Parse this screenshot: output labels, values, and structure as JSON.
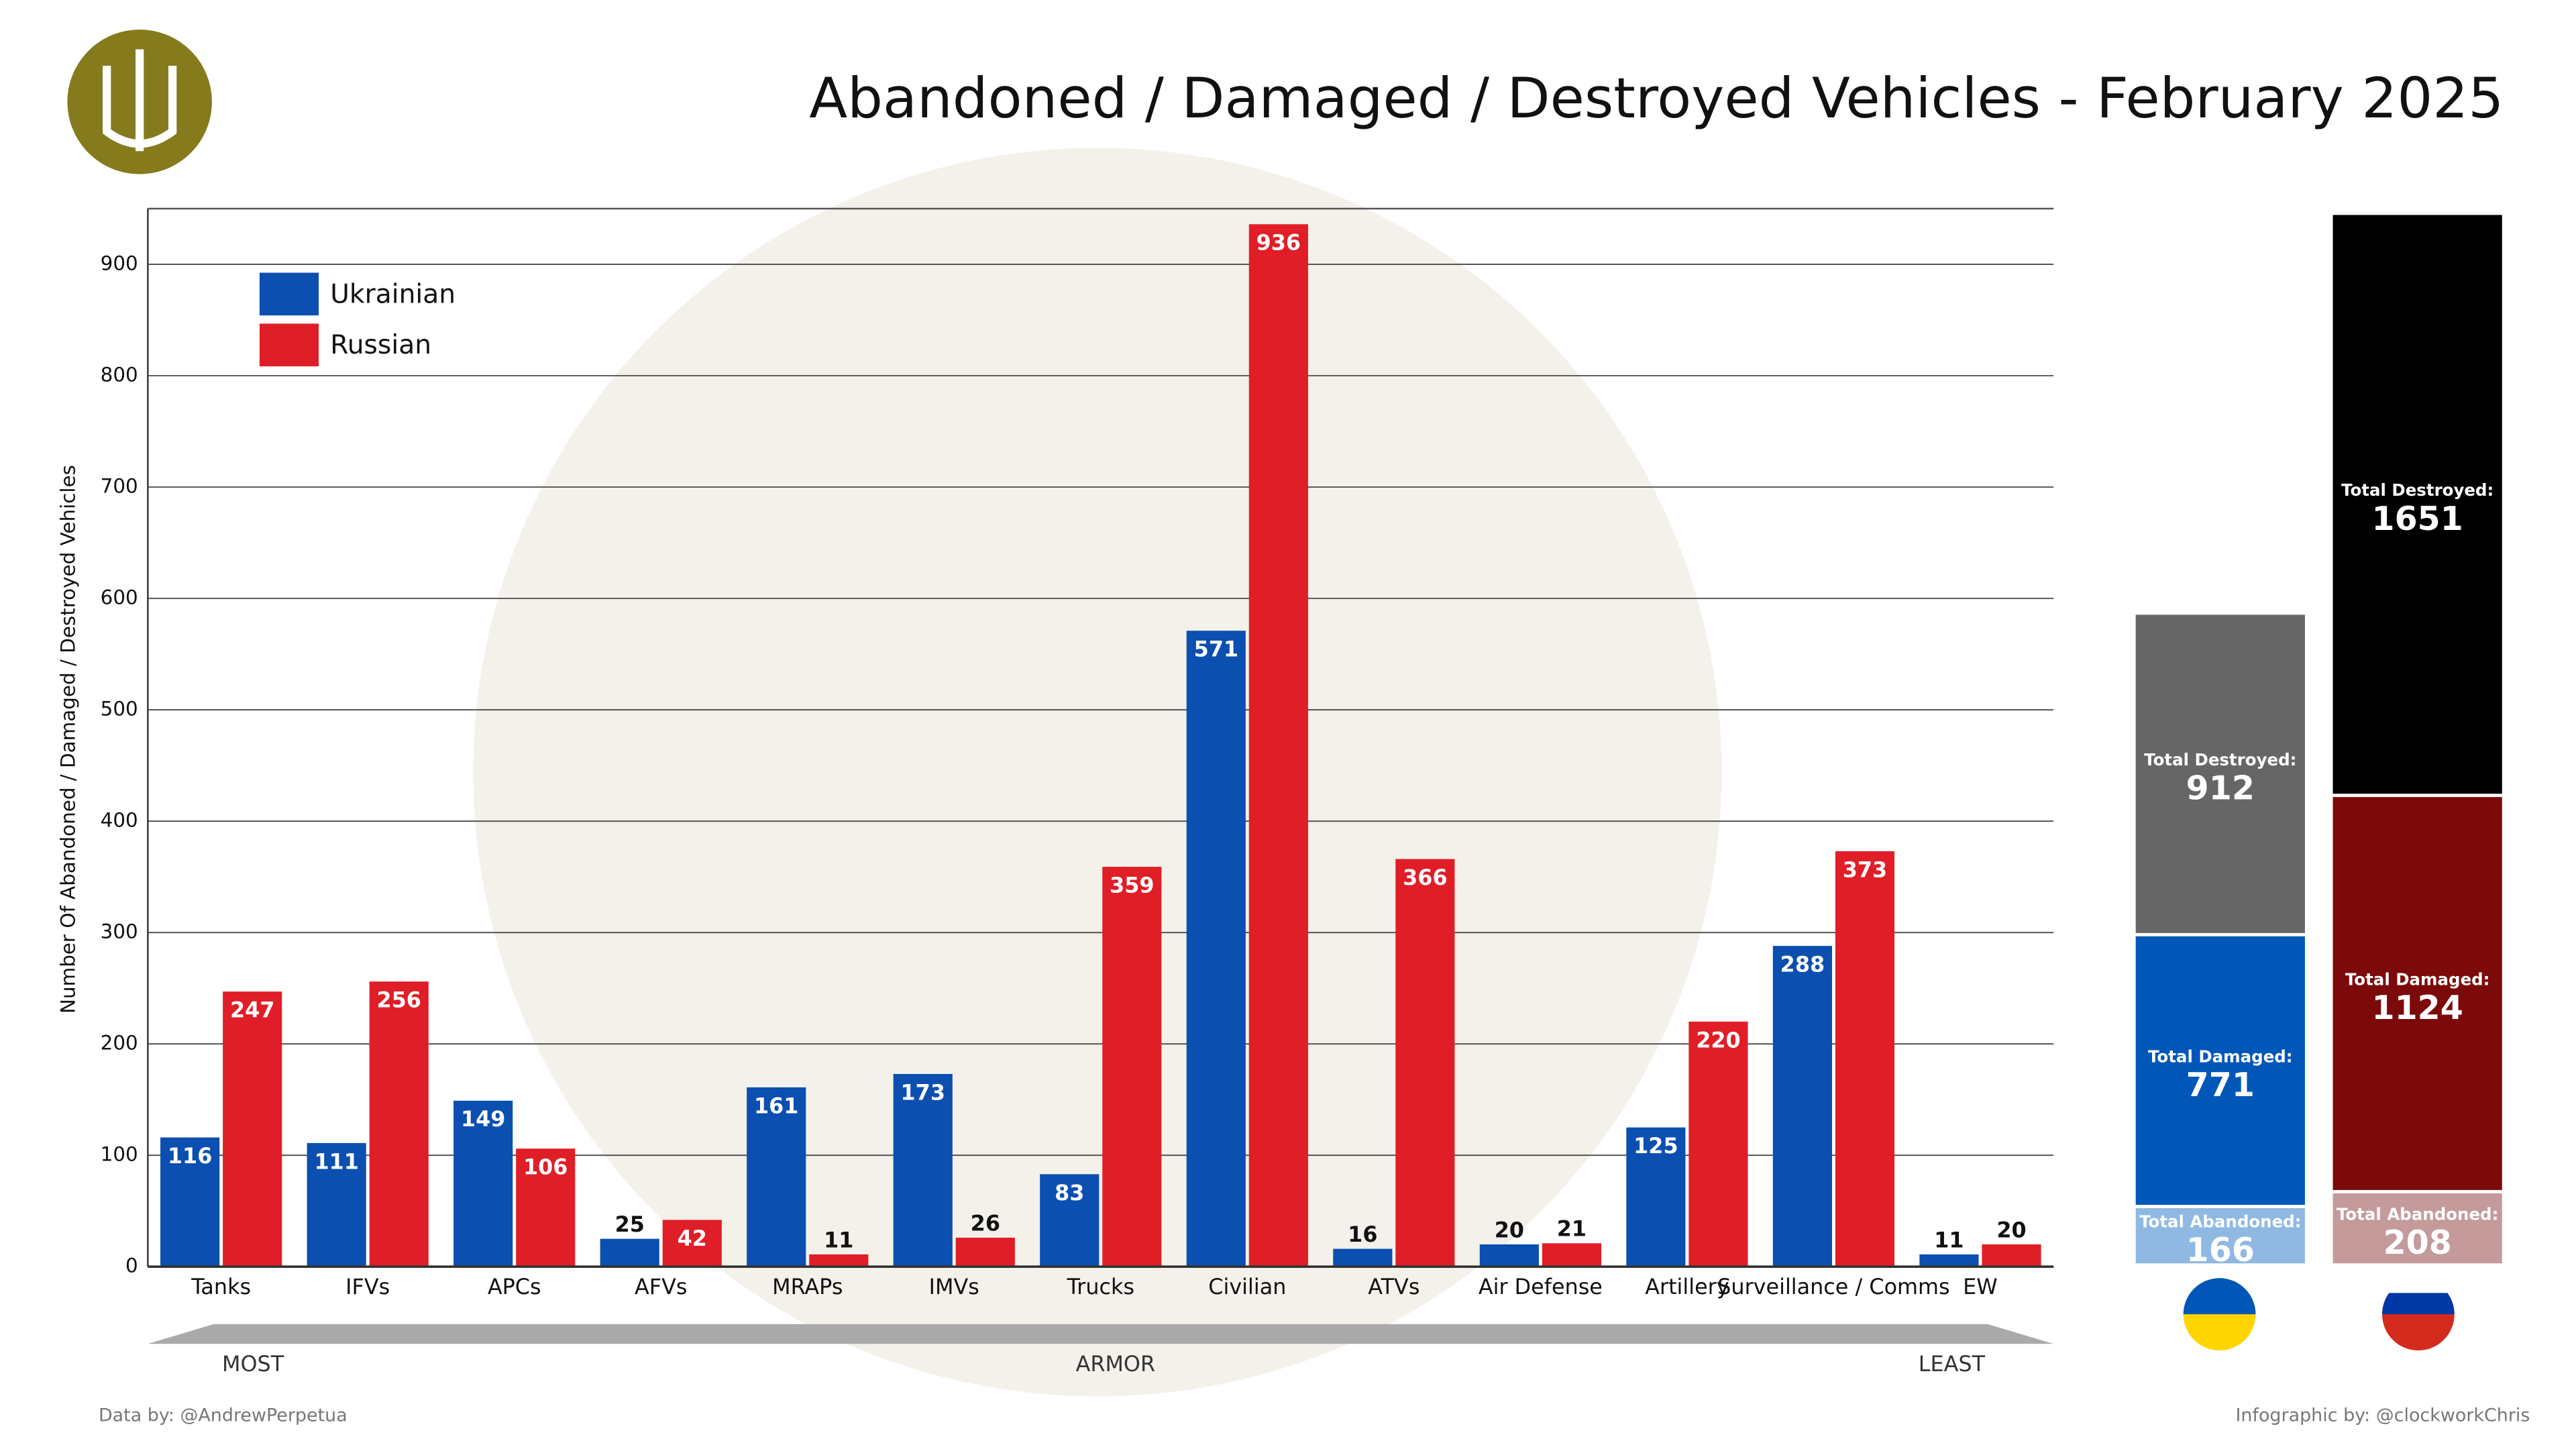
{
  "chart_data": {
    "type": "bar",
    "title": "Abandoned / Damaged / Destroyed Vehicles - February 2025",
    "y_label": "Number Of Abandoned / Damaged / Destroyed Vehicles",
    "categories": [
      "Tanks",
      "IFVs",
      "APCs",
      "AFVs",
      "MRAPs",
      "IMVs",
      "Trucks",
      "Civilian",
      "ATVs",
      "Air Defense",
      "Artillery",
      "Surveillance / Comms",
      "EW"
    ],
    "series": [
      {
        "name": "Ukrainian",
        "color": "#0b4fb0",
        "values": [
          116,
          111,
          149,
          25,
          161,
          173,
          83,
          571,
          16,
          20,
          125,
          288,
          11
        ]
      },
      {
        "name": "Russian",
        "color": "#e01e27",
        "values": [
          247,
          256,
          106,
          42,
          11,
          26,
          359,
          936,
          366,
          21,
          220,
          373,
          20
        ]
      }
    ],
    "ylim": [
      0,
      950
    ],
    "yticks": [
      0,
      100,
      200,
      300,
      400,
      500,
      600,
      700,
      800,
      900
    ],
    "grid": true,
    "legend": "top-left"
  },
  "totals": [
    {
      "segments": [
        {
          "label": "Total Abandoned:",
          "value": 166,
          "color": "#8fb9e3"
        },
        {
          "label": "Total Damaged:",
          "value": 771,
          "color": "#0057b8"
        },
        {
          "label": "Total Destroyed:",
          "value": 912,
          "color": "#666666"
        }
      ]
    },
    {
      "segments": [
        {
          "label": "Total Abandoned:",
          "value": 208,
          "color": "#c49a9a"
        },
        {
          "label": "Total Damaged:",
          "value": 1124,
          "color": "#7d0a0a"
        },
        {
          "label": "Total Destroyed:",
          "value": 1651,
          "color": "#000000"
        }
      ]
    }
  ],
  "armor_scale": {
    "left": "MOST",
    "center": "ARMOR",
    "right": "LEAST"
  },
  "footer": {
    "data_credit": "Data by: @AndrewPerpetua",
    "infographic_credit": "Infographic by: @clockworkChris"
  }
}
